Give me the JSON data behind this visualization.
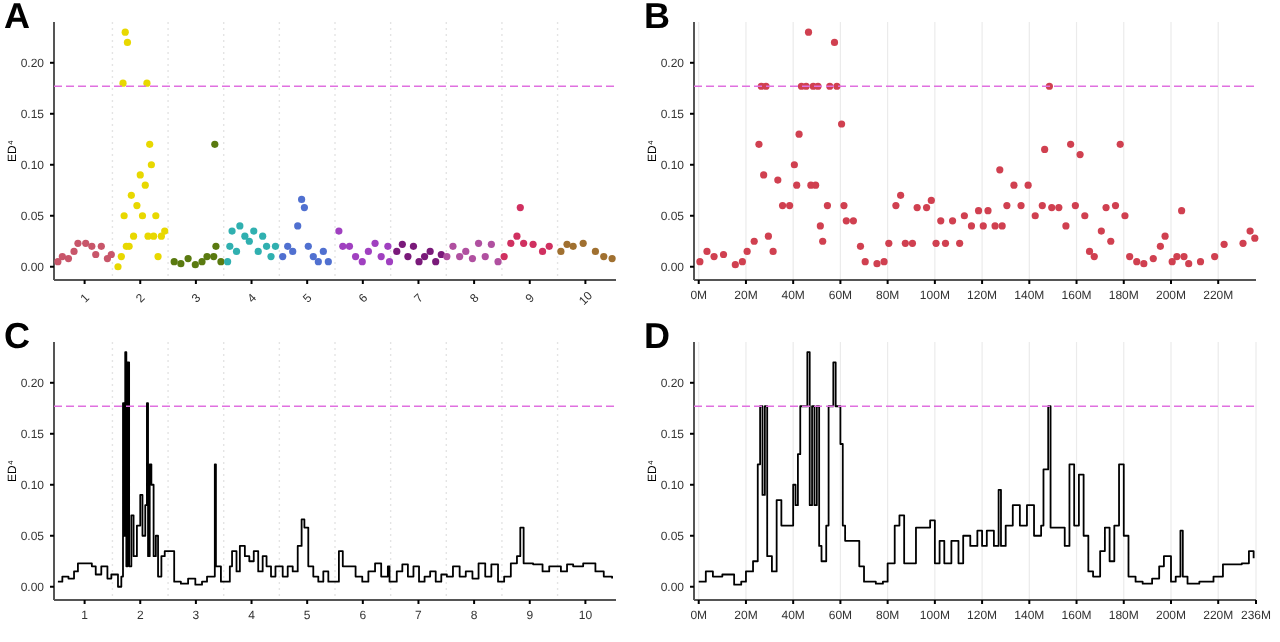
{
  "chart_data": [
    {
      "type": "scatter",
      "title": "A",
      "ylabel": "ED⁴",
      "marker": "circle",
      "xlim": [
        0.45,
        10.55
      ],
      "ylim": [
        -0.013,
        0.24
      ],
      "xticks": [
        1,
        2,
        3,
        4,
        5,
        6,
        7,
        8,
        9,
        10
      ],
      "yticks": [
        {
          "value": 0,
          "label": "0.00"
        },
        {
          "value": 0.05,
          "label": "0.05"
        },
        {
          "value": 0.1,
          "label": "0.10"
        },
        {
          "value": 0.15,
          "label": "0.15"
        },
        {
          "value": 0.2,
          "label": "0.20"
        }
      ],
      "ref_lines": [
        {
          "axis": "y",
          "value": 0.177,
          "color": "#e070e0",
          "line_style": "dashed"
        },
        {
          "axis": "x",
          "value": 1.5,
          "color": "#e4e4e4",
          "line_style": "dotted"
        },
        {
          "axis": "x",
          "value": 2.5,
          "color": "#e4e4e4",
          "line_style": "dotted"
        },
        {
          "axis": "x",
          "value": 3.5,
          "color": "#e4e4e4",
          "line_style": "dotted"
        },
        {
          "axis": "x",
          "value": 4.5,
          "color": "#e4e4e4",
          "line_style": "dotted"
        },
        {
          "axis": "x",
          "value": 5.5,
          "color": "#e4e4e4",
          "line_style": "dotted"
        },
        {
          "axis": "x",
          "value": 6.5,
          "color": "#e4e4e4",
          "line_style": "dotted"
        },
        {
          "axis": "x",
          "value": 7.5,
          "color": "#e4e4e4",
          "line_style": "dotted"
        },
        {
          "axis": "x",
          "value": 8.5,
          "color": "#e4e4e4",
          "line_style": "dotted"
        },
        {
          "axis": "x",
          "value": 9.5,
          "color": "#e4e4e4",
          "line_style": "dotted"
        }
      ],
      "series": [
        {
          "color": "#c8566a",
          "x": [
            0.52,
            0.6,
            0.71,
            0.81,
            0.88,
            1.02,
            1.13,
            1.2,
            1.3,
            1.41,
            1.48
          ],
          "values": [
            0.005,
            0.01,
            0.008,
            0.015,
            0.023,
            0.023,
            0.02,
            0.012,
            0.02,
            0.008,
            0.012
          ]
        },
        {
          "color": "#e8d800",
          "x": [
            1.6,
            1.66,
            1.69,
            1.71,
            1.73,
            1.75,
            1.77,
            1.8,
            1.84,
            1.88,
            1.94,
            2.0,
            2.04,
            2.09,
            2.12,
            2.14,
            2.17,
            2.2,
            2.24,
            2.28,
            2.32,
            2.38,
            2.44
          ],
          "values": [
            0.0,
            0.01,
            0.18,
            0.05,
            0.23,
            0.02,
            0.22,
            0.02,
            0.07,
            0.03,
            0.06,
            0.09,
            0.05,
            0.08,
            0.18,
            0.03,
            0.12,
            0.1,
            0.03,
            0.05,
            0.01,
            0.03,
            0.035
          ]
        },
        {
          "color": "#5a7a10",
          "x": [
            2.61,
            2.73,
            2.86,
            2.99,
            3.11,
            3.2,
            3.32,
            3.34,
            3.36,
            3.45
          ],
          "values": [
            0.005,
            0.003,
            0.008,
            0.002,
            0.005,
            0.01,
            0.01,
            0.12,
            0.02,
            0.005
          ]
        },
        {
          "color": "#30b0b0",
          "x": [
            3.57,
            3.61,
            3.65,
            3.73,
            3.79,
            3.88,
            3.96,
            4.04,
            4.12,
            4.2,
            4.27,
            4.35,
            4.43
          ],
          "values": [
            0.005,
            0.02,
            0.035,
            0.015,
            0.04,
            0.03,
            0.025,
            0.035,
            0.015,
            0.03,
            0.02,
            0.01,
            0.02
          ]
        },
        {
          "color": "#5070d0",
          "x": [
            4.56,
            4.65,
            4.74,
            4.83,
            4.9,
            4.95,
            5.02,
            5.11,
            5.2,
            5.29,
            5.38
          ],
          "values": [
            0.01,
            0.02,
            0.015,
            0.04,
            0.066,
            0.058,
            0.02,
            0.01,
            0.005,
            0.015,
            0.005
          ]
        },
        {
          "color": "#a040c0",
          "x": [
            5.57,
            5.64,
            5.76,
            5.87,
            5.99,
            6.1,
            6.22,
            6.33,
            6.45,
            6.48
          ],
          "values": [
            0.035,
            0.02,
            0.02,
            0.01,
            0.005,
            0.015,
            0.023,
            0.01,
            0.02,
            0.005
          ]
        },
        {
          "color": "#7a1a7a",
          "x": [
            6.61,
            6.71,
            6.81,
            6.91,
            7.01,
            7.11,
            7.21,
            7.31,
            7.41
          ],
          "values": [
            0.015,
            0.022,
            0.01,
            0.02,
            0.005,
            0.01,
            0.015,
            0.005,
            0.012
          ]
        },
        {
          "color": "#b050a0",
          "x": [
            7.51,
            7.62,
            7.74,
            7.85,
            7.97,
            8.08,
            8.2,
            8.31,
            8.43
          ],
          "values": [
            0.01,
            0.02,
            0.01,
            0.015,
            0.008,
            0.023,
            0.01,
            0.022,
            0.005
          ]
        },
        {
          "color": "#d03060",
          "x": [
            8.54,
            8.66,
            8.77,
            8.83,
            8.89,
            9.06,
            9.23,
            9.35
          ],
          "values": [
            0.01,
            0.023,
            0.03,
            0.058,
            0.023,
            0.022,
            0.015,
            0.02
          ]
        },
        {
          "color": "#a07030",
          "x": [
            9.56,
            9.67,
            9.78,
            9.96,
            10.18,
            10.33,
            10.48
          ],
          "values": [
            0.015,
            0.022,
            0.02,
            0.023,
            0.015,
            0.01,
            0.008
          ]
        }
      ]
    },
    {
      "type": "scatter",
      "title": "B",
      "ylabel": "ED⁴",
      "marker": "circle",
      "grid": "x",
      "xlim": [
        -2,
        236
      ],
      "ylim": [
        -0.013,
        0.24
      ],
      "xticks": [
        {
          "value": 0,
          "label": "0M"
        },
        {
          "value": 20,
          "label": "20M"
        },
        {
          "value": 40,
          "label": "40M"
        },
        {
          "value": 60,
          "label": "60M"
        },
        {
          "value": 80,
          "label": "80M"
        },
        {
          "value": 100,
          "label": "100M"
        },
        {
          "value": 120,
          "label": "120M"
        },
        {
          "value": 140,
          "label": "140M"
        },
        {
          "value": 160,
          "label": "160M"
        },
        {
          "value": 180,
          "label": "180M"
        },
        {
          "value": 200,
          "label": "200M"
        },
        {
          "value": 220,
          "label": "220M"
        }
      ],
      "yticks": [
        {
          "value": 0,
          "label": "0.00"
        },
        {
          "value": 0.05,
          "label": "0.05"
        },
        {
          "value": 0.1,
          "label": "0.10"
        },
        {
          "value": 0.15,
          "label": "0.15"
        },
        {
          "value": 0.2,
          "label": "0.20"
        }
      ],
      "ref_lines": [
        {
          "axis": "y",
          "value": 0.177,
          "color": "#e070e0",
          "line_style": "dashed"
        }
      ],
      "series": [
        {
          "color": "#d04050",
          "x": [
            0.5,
            3.5,
            6.5,
            10.5,
            15.5,
            18.5,
            20.5,
            23.5,
            25.5,
            26.5,
            27.5,
            28.5,
            29.5,
            31.5,
            33.5,
            35.5,
            38.5,
            40.5,
            41.5,
            42.5,
            43.5,
            45.5,
            46.5,
            47.5,
            48.5,
            49.5,
            50.5,
            51.5,
            52.5,
            54.5,
            55.5,
            57.5,
            58.5,
            60.5,
            61.5,
            62.5,
            65.5,
            68.5,
            70.5,
            75.5,
            78.5,
            80.5,
            83.5,
            85.5,
            87.5,
            90.5,
            92.5,
            96.5,
            98.5,
            100.5,
            102.5,
            104.5,
            107.5,
            110.5,
            112.5,
            115.5,
            118.5,
            120.5,
            122.5,
            125.5,
            127.5,
            128.5,
            130.5,
            133.5,
            136.5,
            139.5,
            142.5,
            145.5,
            146.5,
            148.5,
            149.5,
            152.5,
            155.5,
            157.5,
            159.5,
            161.5,
            163.5,
            165.5,
            167.5,
            170.5,
            172.5,
            174.5,
            176.5,
            178.5,
            180.5,
            182.5,
            185.5,
            188.5,
            192.5,
            195.5,
            197.5,
            200.5,
            202.5,
            204.5,
            205.5,
            207.5,
            212.5,
            218.5,
            222.5,
            230.5,
            233.5,
            235.5
          ],
          "values": [
            0.005,
            0.015,
            0.01,
            0.012,
            0.002,
            0.005,
            0.015,
            0.025,
            0.12,
            0.177,
            0.09,
            0.177,
            0.03,
            0.015,
            0.085,
            0.06,
            0.06,
            0.1,
            0.08,
            0.13,
            0.177,
            0.177,
            0.23,
            0.08,
            0.177,
            0.08,
            0.177,
            0.04,
            0.025,
            0.06,
            0.177,
            0.22,
            0.177,
            0.14,
            0.06,
            0.045,
            0.045,
            0.02,
            0.005,
            0.003,
            0.005,
            0.023,
            0.06,
            0.07,
            0.023,
            0.023,
            0.058,
            0.058,
            0.065,
            0.023,
            0.045,
            0.023,
            0.045,
            0.023,
            0.05,
            0.04,
            0.055,
            0.04,
            0.055,
            0.04,
            0.095,
            0.04,
            0.06,
            0.08,
            0.06,
            0.08,
            0.05,
            0.06,
            0.115,
            0.177,
            0.058,
            0.058,
            0.04,
            0.12,
            0.06,
            0.11,
            0.05,
            0.015,
            0.01,
            0.035,
            0.058,
            0.025,
            0.06,
            0.12,
            0.05,
            0.01,
            0.005,
            0.003,
            0.008,
            0.02,
            0.03,
            0.005,
            0.01,
            0.055,
            0.01,
            0.003,
            0.005,
            0.01,
            0.022,
            0.023,
            0.035,
            0.028
          ]
        }
      ]
    },
    {
      "type": "step",
      "title": "C",
      "ylabel": "ED⁴",
      "xlim": [
        0.45,
        10.55
      ],
      "ylim": [
        -0.013,
        0.24
      ],
      "xticks": [
        1,
        2,
        3,
        4,
        5,
        6,
        7,
        8,
        9,
        10
      ],
      "yticks": [
        {
          "value": 0,
          "label": "0.00"
        },
        {
          "value": 0.05,
          "label": "0.05"
        },
        {
          "value": 0.1,
          "label": "0.10"
        },
        {
          "value": 0.15,
          "label": "0.15"
        },
        {
          "value": 0.2,
          "label": "0.20"
        }
      ],
      "ref_lines": [
        {
          "axis": "y",
          "value": 0.177,
          "color": "#e070e0",
          "line_style": "dashed"
        },
        {
          "axis": "x",
          "value": 1.5,
          "color": "#e4e4e4",
          "line_style": "dotted"
        },
        {
          "axis": "x",
          "value": 2.5,
          "color": "#e4e4e4",
          "line_style": "dotted"
        },
        {
          "axis": "x",
          "value": 3.5,
          "color": "#e4e4e4",
          "line_style": "dotted"
        },
        {
          "axis": "x",
          "value": 4.5,
          "color": "#e4e4e4",
          "line_style": "dotted"
        },
        {
          "axis": "x",
          "value": 5.5,
          "color": "#e4e4e4",
          "line_style": "dotted"
        },
        {
          "axis": "x",
          "value": 6.5,
          "color": "#e4e4e4",
          "line_style": "dotted"
        },
        {
          "axis": "x",
          "value": 7.5,
          "color": "#e4e4e4",
          "line_style": "dotted"
        },
        {
          "axis": "x",
          "value": 8.5,
          "color": "#e4e4e4",
          "line_style": "dotted"
        },
        {
          "axis": "x",
          "value": 9.5,
          "color": "#e4e4e4",
          "line_style": "dotted"
        }
      ],
      "series": [
        {
          "color": "#000000",
          "x": [
            0.52,
            0.6,
            0.71,
            0.81,
            0.88,
            1.02,
            1.13,
            1.2,
            1.3,
            1.41,
            1.48,
            1.6,
            1.66,
            1.69,
            1.71,
            1.73,
            1.75,
            1.77,
            1.8,
            1.84,
            1.88,
            1.94,
            2.0,
            2.04,
            2.09,
            2.12,
            2.14,
            2.17,
            2.2,
            2.24,
            2.28,
            2.32,
            2.38,
            2.44,
            2.61,
            2.73,
            2.86,
            2.99,
            3.11,
            3.2,
            3.32,
            3.34,
            3.36,
            3.45,
            3.57,
            3.61,
            3.65,
            3.73,
            3.79,
            3.88,
            3.96,
            4.04,
            4.12,
            4.2,
            4.27,
            4.35,
            4.43,
            4.56,
            4.65,
            4.74,
            4.83,
            4.9,
            4.95,
            5.02,
            5.11,
            5.2,
            5.29,
            5.38,
            5.57,
            5.64,
            5.76,
            5.87,
            5.99,
            6.1,
            6.22,
            6.33,
            6.45,
            6.48,
            6.61,
            6.71,
            6.81,
            6.91,
            7.01,
            7.11,
            7.21,
            7.31,
            7.41,
            7.51,
            7.62,
            7.74,
            7.85,
            7.97,
            8.08,
            8.2,
            8.31,
            8.43,
            8.54,
            8.66,
            8.77,
            8.83,
            8.89,
            9.06,
            9.23,
            9.35,
            9.56,
            9.67,
            9.78,
            9.96,
            10.18,
            10.33,
            10.48
          ],
          "values": [
            0.005,
            0.01,
            0.008,
            0.015,
            0.023,
            0.023,
            0.02,
            0.012,
            0.02,
            0.008,
            0.012,
            0.0,
            0.01,
            0.18,
            0.05,
            0.23,
            0.02,
            0.22,
            0.02,
            0.07,
            0.03,
            0.06,
            0.09,
            0.05,
            0.08,
            0.18,
            0.03,
            0.12,
            0.1,
            0.03,
            0.05,
            0.01,
            0.03,
            0.035,
            0.005,
            0.003,
            0.008,
            0.002,
            0.005,
            0.01,
            0.01,
            0.12,
            0.02,
            0.005,
            0.005,
            0.02,
            0.035,
            0.015,
            0.04,
            0.03,
            0.025,
            0.035,
            0.015,
            0.03,
            0.02,
            0.01,
            0.02,
            0.01,
            0.02,
            0.015,
            0.04,
            0.066,
            0.058,
            0.02,
            0.01,
            0.005,
            0.015,
            0.005,
            0.035,
            0.02,
            0.02,
            0.01,
            0.005,
            0.015,
            0.023,
            0.01,
            0.02,
            0.005,
            0.015,
            0.022,
            0.01,
            0.02,
            0.005,
            0.01,
            0.015,
            0.005,
            0.012,
            0.01,
            0.02,
            0.01,
            0.015,
            0.008,
            0.023,
            0.01,
            0.022,
            0.005,
            0.01,
            0.023,
            0.03,
            0.058,
            0.023,
            0.022,
            0.015,
            0.02,
            0.015,
            0.022,
            0.02,
            0.023,
            0.015,
            0.01,
            0.008
          ]
        }
      ]
    },
    {
      "type": "step",
      "title": "D",
      "ylabel": "ED⁴",
      "grid": "x",
      "xlim": [
        -2,
        236
      ],
      "ylim": [
        -0.013,
        0.24
      ],
      "xticks": [
        {
          "value": 0,
          "label": "0M"
        },
        {
          "value": 20,
          "label": "20M"
        },
        {
          "value": 40,
          "label": "40M"
        },
        {
          "value": 60,
          "label": "60M"
        },
        {
          "value": 80,
          "label": "80M"
        },
        {
          "value": 100,
          "label": "100M"
        },
        {
          "value": 120,
          "label": "120M"
        },
        {
          "value": 140,
          "label": "140M"
        },
        {
          "value": 160,
          "label": "160M"
        },
        {
          "value": 180,
          "label": "180M"
        },
        {
          "value": 200,
          "label": "200M"
        },
        {
          "value": 220,
          "label": "220M"
        },
        {
          "value": 236,
          "label": "236M"
        }
      ],
      "yticks": [
        {
          "value": 0,
          "label": "0.00"
        },
        {
          "value": 0.05,
          "label": "0.05"
        },
        {
          "value": 0.1,
          "label": "0.10"
        },
        {
          "value": 0.15,
          "label": "0.15"
        },
        {
          "value": 0.2,
          "label": "0.20"
        }
      ],
      "ref_lines": [
        {
          "axis": "y",
          "value": 0.177,
          "color": "#e070e0",
          "line_style": "dashed"
        }
      ],
      "series": [
        {
          "color": "#000000",
          "x": [
            0,
            3,
            6,
            10,
            15,
            18,
            20,
            23,
            25,
            26,
            27,
            28,
            29,
            31,
            33,
            35,
            38,
            40,
            41,
            42,
            43,
            45,
            46,
            47,
            48,
            49,
            50,
            51,
            52,
            54,
            55,
            57,
            58,
            60,
            61,
            62,
            65,
            68,
            70,
            75,
            78,
            80,
            83,
            85,
            87,
            90,
            92,
            96,
            98,
            100,
            102,
            104,
            107,
            110,
            112,
            115,
            118,
            120,
            122,
            125,
            127,
            128,
            130,
            133,
            136,
            139,
            142,
            145,
            146,
            148,
            149,
            152,
            155,
            157,
            159,
            161,
            163,
            165,
            167,
            170,
            172,
            174,
            176,
            178,
            180,
            182,
            185,
            188,
            192,
            195,
            197,
            200,
            202,
            204,
            205,
            207,
            212,
            218,
            222,
            230,
            233,
            235
          ],
          "values": [
            0.005,
            0.015,
            0.01,
            0.012,
            0.002,
            0.005,
            0.015,
            0.025,
            0.12,
            0.177,
            0.09,
            0.177,
            0.03,
            0.015,
            0.085,
            0.06,
            0.06,
            0.1,
            0.08,
            0.13,
            0.177,
            0.177,
            0.23,
            0.08,
            0.177,
            0.08,
            0.177,
            0.04,
            0.025,
            0.06,
            0.177,
            0.22,
            0.177,
            0.14,
            0.06,
            0.045,
            0.045,
            0.02,
            0.005,
            0.003,
            0.005,
            0.023,
            0.06,
            0.07,
            0.023,
            0.023,
            0.058,
            0.058,
            0.065,
            0.023,
            0.045,
            0.023,
            0.045,
            0.023,
            0.05,
            0.04,
            0.055,
            0.04,
            0.055,
            0.04,
            0.095,
            0.04,
            0.06,
            0.08,
            0.06,
            0.08,
            0.05,
            0.06,
            0.115,
            0.177,
            0.058,
            0.058,
            0.04,
            0.12,
            0.06,
            0.11,
            0.05,
            0.015,
            0.01,
            0.035,
            0.058,
            0.025,
            0.06,
            0.12,
            0.05,
            0.01,
            0.005,
            0.003,
            0.008,
            0.02,
            0.03,
            0.005,
            0.01,
            0.055,
            0.01,
            0.003,
            0.005,
            0.01,
            0.022,
            0.023,
            0.035,
            0.028
          ]
        }
      ]
    }
  ]
}
